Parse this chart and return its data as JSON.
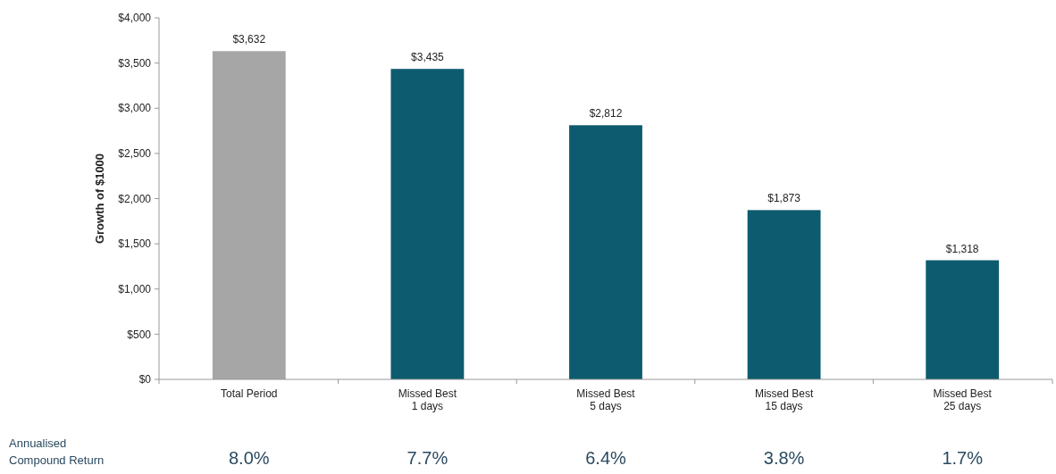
{
  "chart_data": {
    "type": "bar",
    "ylabel": "Growth of $1000",
    "categories": [
      "Total Period",
      "Missed Best\n1 days",
      "Missed Best\n5 days",
      "Missed Best\n15 days",
      "Missed Best\n25 days"
    ],
    "values": [
      3632,
      3435,
      2812,
      1873,
      1318
    ],
    "colors": [
      "#a6a6a6",
      "#0d5b6e",
      "#0d5b6e",
      "#0d5b6e",
      "#0d5b6e"
    ],
    "value_labels": [
      "$3,632",
      "$3,435",
      "$2,812",
      "$1,873",
      "$1,318"
    ],
    "ylim": [
      0,
      4000
    ],
    "yticks": [
      {
        "value": 0,
        "label": "$0"
      },
      {
        "value": 500,
        "label": "$500"
      },
      {
        "value": 1000,
        "label": "$1,000"
      },
      {
        "value": 1500,
        "label": "$1,500"
      },
      {
        "value": 2000,
        "label": "$2,000"
      },
      {
        "value": 2500,
        "label": "$2,500"
      },
      {
        "value": 3000,
        "label": "$3,000"
      },
      {
        "value": 3500,
        "label": "$3,500"
      },
      {
        "value": 4000,
        "label": "$4,000"
      }
    ],
    "grid": false,
    "annotations": [
      "Annualised\nCompound Return",
      "8.0%",
      "7.7%",
      "6.4%",
      "3.8%",
      "1.7%"
    ]
  }
}
